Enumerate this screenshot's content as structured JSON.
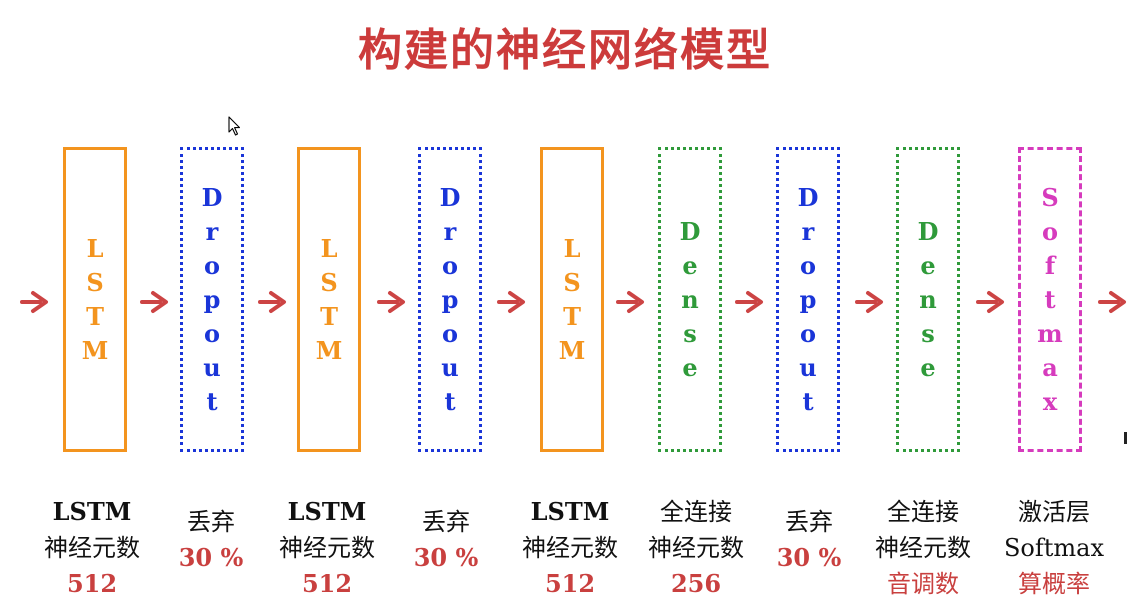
{
  "title": "构建的神经网络模型",
  "colors": {
    "title": "#cc3b3b",
    "arrow": "#cc4444",
    "lstm": "#f3941e",
    "dropout": "#1a35d8",
    "dense": "#2f9a3a",
    "softmax": "#d63bbd",
    "value": "#c9403f",
    "text": "#111111"
  },
  "arrows": 10,
  "blocks": [
    {
      "chars": [
        "L",
        "S",
        "T",
        "M"
      ],
      "style": "lstm"
    },
    {
      "chars": [
        "D",
        "r",
        "o",
        "p",
        "o",
        "u",
        "t"
      ],
      "style": "dropout"
    },
    {
      "chars": [
        "L",
        "S",
        "T",
        "M"
      ],
      "style": "lstm"
    },
    {
      "chars": [
        "D",
        "r",
        "o",
        "p",
        "o",
        "u",
        "t"
      ],
      "style": "dropout"
    },
    {
      "chars": [
        "L",
        "S",
        "T",
        "M"
      ],
      "style": "lstm"
    },
    {
      "chars": [
        "D",
        "e",
        "n",
        "s",
        "e"
      ],
      "style": "dense"
    },
    {
      "chars": [
        "D",
        "r",
        "o",
        "p",
        "o",
        "u",
        "t"
      ],
      "style": "dropout"
    },
    {
      "chars": [
        "D",
        "e",
        "n",
        "s",
        "e"
      ],
      "style": "dense"
    },
    {
      "chars": [
        "S",
        "o",
        "f",
        "t",
        "m",
        "a",
        "x"
      ],
      "style": "softmax"
    }
  ],
  "labels": [
    {
      "line1": "LSTM",
      "line2": "神经元数",
      "line3": "512"
    },
    {
      "line1": "丢弃",
      "line2": "",
      "line3": "30 %"
    },
    {
      "line1": "LSTM",
      "line2": "神经元数",
      "line3": "512"
    },
    {
      "line1": "丢弃",
      "line2": "",
      "line3": "30 %"
    },
    {
      "line1": "LSTM",
      "line2": "神经元数",
      "line3": "512"
    },
    {
      "line1": "全连接",
      "line2": "神经元数",
      "line3": "256"
    },
    {
      "line1": "丢弃",
      "line2": "",
      "line3": "30 %"
    },
    {
      "line1": "全连接",
      "line2": "神经元数",
      "line3": "音调数"
    },
    {
      "line1": "激活层",
      "line2": "Softmax",
      "line3": "算概率"
    }
  ]
}
